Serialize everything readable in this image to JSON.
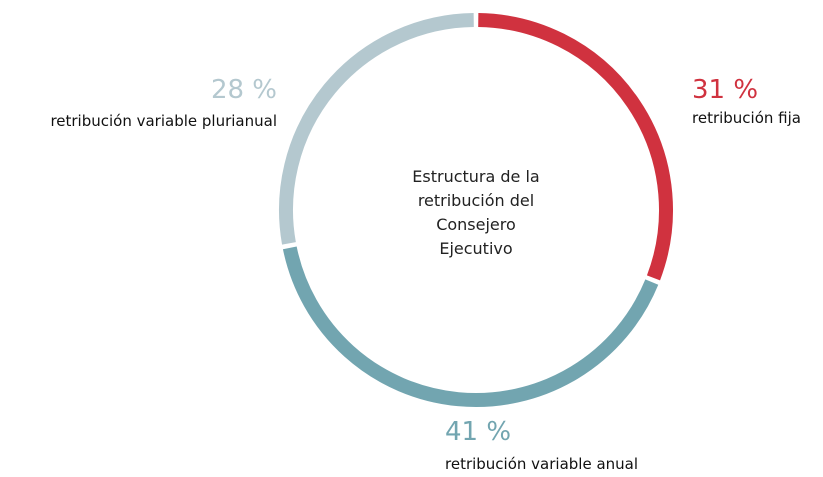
{
  "chart_data": {
    "type": "donut",
    "title": "Estructura de la retribución del Consejero Ejecutivo",
    "categories": [
      "retribución fija",
      "retribución variable anual",
      "retribución variable plurianual"
    ],
    "values": [
      31,
      41,
      28
    ],
    "value_labels": [
      "31 %",
      "41 %",
      "28 %"
    ],
    "colors": [
      "#d0323f",
      "#72a5b0",
      "#b4c8cf"
    ]
  }
}
